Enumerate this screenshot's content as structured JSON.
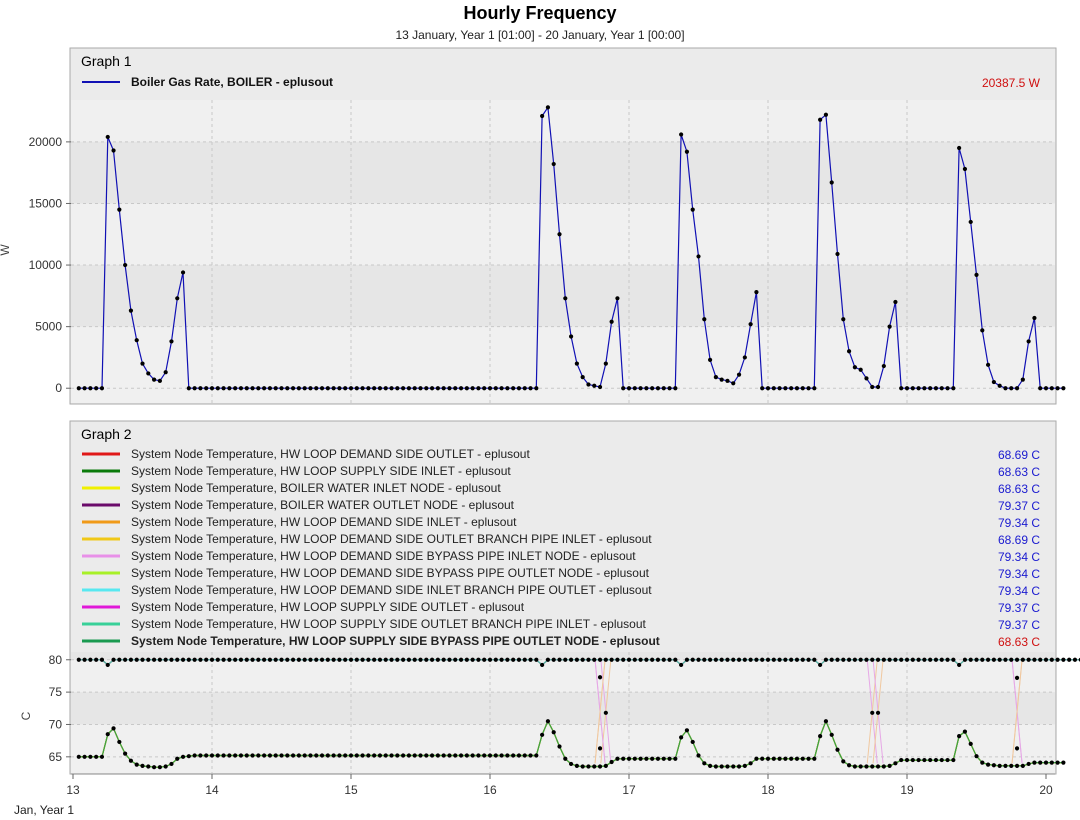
{
  "header": {
    "title": "Hourly Frequency",
    "subtitle": "13 January, Year 1 [01:00] - 20 January, Year 1 [00:00]"
  },
  "x_axis": {
    "tick_labels": [
      "13",
      "14",
      "15",
      "16",
      "17",
      "18",
      "19",
      "20"
    ],
    "sub_label": "Jan, Year 1"
  },
  "colors": {
    "grid_bg": "#f0f0f0",
    "alt_band": "#e6e6e6",
    "legend_bg": "#ebebeb",
    "series1": "#1010b4",
    "marker": "#000000",
    "value_blue": "#1a1ad0",
    "value_red": "#d01010"
  },
  "chart_data": [
    {
      "type": "line",
      "panel_title": "Graph 1",
      "ylabel": "W",
      "ylim": [
        -1200,
        23400
      ],
      "yticks": [
        0,
        5000,
        10000,
        15000,
        20000
      ],
      "ytick_labels": [
        "0",
        "5000",
        "10000",
        "15000",
        "20000"
      ],
      "x_start_day": 13.0417,
      "x_step_hours": 1,
      "series": [
        {
          "name": "Boiler Gas Rate, BOILER - eplusout",
          "color": "#1010b4",
          "readout": "20387.5 W",
          "readout_color": "#d01010",
          "bold": true,
          "segments": [
            {
              "start_hour": 0,
              "values": [
                0,
                0,
                0,
                0,
                0,
                20400,
                19300,
                14500,
                10000,
                6300,
                3900,
                2000,
                1200,
                700,
                600,
                1300,
                3800,
                7300,
                9400
              ]
            },
            {
              "start_hour": 19,
              "values": [
                0,
                0,
                0,
                0,
                0,
                0,
                0,
                0,
                0,
                0,
                0,
                0,
                0,
                0,
                0,
                0,
                0,
                0,
                0,
                0,
                0,
                0,
                0,
                0,
                0,
                0,
                0,
                0,
                0,
                0,
                0,
                0,
                0,
                0,
                0,
                0,
                0,
                0,
                0,
                0,
                0,
                0,
                0,
                0,
                0,
                0,
                0,
                0,
                0,
                0,
                0,
                0,
                0,
                0,
                0,
                0,
                0,
                0,
                0,
                0,
                0
              ]
            },
            {
              "start_hour": 80,
              "values": [
                22100,
                22800,
                18200,
                12500,
                7300,
                4200,
                2000,
                900,
                300,
                200,
                100,
                2000,
                5400,
                7300
              ]
            },
            {
              "start_hour": 94,
              "values": [
                0,
                0,
                0,
                0,
                0,
                0,
                0,
                0,
                0,
                0
              ]
            },
            {
              "start_hour": 104,
              "values": [
                20600,
                19200,
                14500,
                10700,
                5600,
                2300,
                900,
                700,
                600,
                400,
                1100,
                2500,
                5200,
                7800
              ]
            },
            {
              "start_hour": 118,
              "values": [
                0,
                0,
                0,
                0,
                0,
                0,
                0,
                0,
                0,
                0
              ]
            },
            {
              "start_hour": 128,
              "values": [
                21800,
                22200,
                16700,
                10900,
                5600,
                3000,
                1700,
                1500,
                800,
                100,
                100,
                1800,
                5000,
                7000
              ]
            },
            {
              "start_hour": 142,
              "values": [
                0,
                0,
                0,
                0,
                0,
                0,
                0,
                0,
                0,
                0
              ]
            },
            {
              "start_hour": 152,
              "values": [
                19500,
                17800,
                13500,
                9200,
                4700,
                1900,
                500,
                200,
                0,
                0,
                0,
                700,
                3800,
                5700
              ]
            },
            {
              "start_hour": 166,
              "values": [
                0,
                0,
                0,
                0,
                0
              ]
            }
          ]
        }
      ]
    },
    {
      "type": "line",
      "panel_title": "Graph 2",
      "ylabel": "C",
      "ylim": [
        62.5,
        81.2
      ],
      "yticks": [
        65,
        70,
        75,
        80
      ],
      "ytick_labels": [
        "65",
        "70",
        "75",
        "80"
      ],
      "x_start_day": 13.0417,
      "x_step_hours": 1,
      "hot_profile": [
        80.0,
        80.0,
        80.0,
        80.0,
        80.0,
        79.2,
        80.0,
        80.0,
        80.0,
        80.0,
        80.0,
        80.0,
        80.0,
        80.0,
        80.0,
        80.0,
        80.0,
        80.0,
        80.0,
        80.0,
        80.0,
        80.0,
        80.0,
        80.0,
        80.0,
        80.0,
        80.0,
        80.0,
        80.0,
        80.0,
        80.0,
        80.0,
        80.0,
        80.0,
        80.0,
        80.0,
        80.0,
        80.0,
        80.0,
        80.0,
        80.0,
        80.0,
        80.0,
        80.0,
        80.0,
        80.0,
        80.0,
        80.0,
        80.0,
        80.0,
        80.0,
        80.0,
        80.0,
        80.0,
        80.0,
        80.0,
        80.0,
        80.0,
        80.0,
        80.0,
        80.0,
        80.0,
        80.0,
        80.0,
        80.0,
        80.0,
        80.0,
        80.0,
        80.0,
        80.0,
        80.0,
        80.0,
        80.0,
        80.0,
        80.0,
        80.0,
        80.0,
        80.0,
        80.0,
        80.0,
        79.2,
        80.0,
        80.0,
        80.0,
        80.0,
        80.0,
        80.0,
        80.0,
        80.0,
        80.0,
        80.0,
        80.0,
        80.0,
        80.0,
        80.0,
        80.0,
        80.0,
        80.0,
        80.0,
        80.0,
        80.0,
        80.0,
        80.0,
        80.0,
        79.2,
        80.0,
        80.0,
        80.0,
        80.0,
        80.0,
        80.0,
        80.0,
        80.0,
        80.0,
        80.0,
        80.0,
        80.0,
        80.0,
        80.0,
        80.0,
        80.0,
        80.0,
        80.0,
        80.0,
        80.0,
        80.0,
        80.0,
        80.0,
        79.2,
        80.0,
        80.0,
        80.0,
        80.0,
        80.0,
        80.0,
        80.0,
        80.0,
        80.0,
        80.0,
        80.0,
        80.0,
        80.0,
        80.0,
        80.0,
        80.0,
        80.0,
        80.0,
        80.0,
        80.0,
        80.0,
        80.0,
        80.0,
        79.2,
        80.0,
        80.0,
        80.0,
        80.0,
        80.0,
        80.0,
        80.0,
        80.0,
        80.0,
        80.0,
        80.0,
        80.0,
        80.0,
        80.0,
        80.0,
        80.0,
        80.0,
        80.0,
        80.0,
        80.0,
        80.0
      ],
      "cold_profile": [
        65.0,
        65.0,
        65.0,
        65.0,
        65.0,
        68.5,
        69.4,
        67.3,
        65.5,
        64.4,
        63.8,
        63.6,
        63.5,
        63.4,
        63.4,
        63.5,
        63.9,
        64.7,
        65.0,
        65.1,
        65.2,
        65.2,
        65.2,
        65.2,
        65.2,
        65.2,
        65.2,
        65.2,
        65.2,
        65.2,
        65.2,
        65.2,
        65.2,
        65.2,
        65.2,
        65.2,
        65.2,
        65.2,
        65.2,
        65.2,
        65.2,
        65.2,
        65.2,
        65.2,
        65.2,
        65.2,
        65.2,
        65.2,
        65.2,
        65.2,
        65.2,
        65.2,
        65.2,
        65.2,
        65.2,
        65.2,
        65.2,
        65.2,
        65.2,
        65.2,
        65.2,
        65.2,
        65.2,
        65.2,
        65.2,
        65.2,
        65.2,
        65.2,
        65.2,
        65.2,
        65.2,
        65.2,
        65.2,
        65.2,
        65.2,
        65.2,
        65.2,
        65.2,
        65.2,
        65.2,
        68.4,
        70.5,
        68.8,
        66.6,
        64.7,
        63.9,
        63.6,
        63.5,
        63.5,
        63.5,
        63.5,
        63.6,
        64.2,
        64.7,
        64.7,
        64.7,
        64.7,
        64.7,
        64.7,
        64.7,
        64.7,
        64.7,
        64.7,
        64.7,
        68.0,
        69.1,
        67.3,
        65.2,
        64.0,
        63.6,
        63.5,
        63.5,
        63.5,
        63.5,
        63.5,
        63.6,
        64.0,
        64.7,
        64.7,
        64.7,
        64.7,
        64.7,
        64.7,
        64.7,
        64.7,
        64.7,
        64.7,
        64.7,
        68.2,
        70.5,
        68.4,
        66.1,
        64.3,
        63.7,
        63.5,
        63.5,
        63.5,
        63.5,
        63.5,
        63.5,
        63.6,
        64.0,
        64.5,
        64.5,
        64.5,
        64.5,
        64.5,
        64.5,
        64.5,
        64.5,
        64.5,
        64.5,
        68.2,
        68.9,
        67.0,
        65.1,
        64.1,
        63.8,
        63.7,
        63.6,
        63.6,
        63.6,
        63.6,
        63.6,
        63.9,
        64.1,
        64.1,
        64.1,
        64.1,
        64.1,
        64.1
      ],
      "mid_markers": [
        {
          "hour": 90,
          "value": 77.3
        },
        {
          "hour": 91,
          "value": 71.8
        },
        {
          "hour": 90,
          "value": 66.3
        },
        {
          "hour": 137,
          "value": 71.8
        },
        {
          "hour": 138,
          "value": 71.8
        },
        {
          "hour": 162,
          "value": 77.2
        },
        {
          "hour": 162,
          "value": 66.3
        }
      ],
      "series": [
        {
          "name": "System Node Temperature, HW LOOP DEMAND SIDE OUTLET - eplusout",
          "color": "#e01818",
          "readout": "68.69 C",
          "readout_color": "#1a1ad0",
          "bold": false,
          "profile": "cold"
        },
        {
          "name": "System Node Temperature, HW LOOP SUPPLY SIDE INLET - eplusout",
          "color": "#0a7a0a",
          "readout": "68.63 C",
          "readout_color": "#1a1ad0",
          "bold": false,
          "profile": "cold"
        },
        {
          "name": "System Node Temperature, BOILER WATER INLET NODE - eplusout",
          "color": "#f0f000",
          "readout": "68.63 C",
          "readout_color": "#1a1ad0",
          "bold": false,
          "profile": "cold"
        },
        {
          "name": "System Node Temperature, BOILER WATER OUTLET NODE - eplusout",
          "color": "#6a0a6a",
          "readout": "79.37 C",
          "readout_color": "#1a1ad0",
          "bold": false,
          "profile": "hot"
        },
        {
          "name": "System Node Temperature, HW LOOP DEMAND SIDE INLET - eplusout",
          "color": "#f09a18",
          "readout": "79.34 C",
          "readout_color": "#1a1ad0",
          "bold": false,
          "profile": "hot"
        },
        {
          "name": "System Node Temperature, HW LOOP DEMAND SIDE OUTLET BRANCH PIPE INLET - eplusout",
          "color": "#f0c818",
          "readout": "68.69 C",
          "readout_color": "#1a1ad0",
          "bold": false,
          "profile": "cold"
        },
        {
          "name": "System Node Temperature, HW LOOP DEMAND SIDE BYPASS PIPE INLET NODE - eplusout",
          "color": "#e890e8",
          "readout": "79.34 C",
          "readout_color": "#1a1ad0",
          "bold": false,
          "profile": "hot"
        },
        {
          "name": "System Node Temperature, HW LOOP DEMAND SIDE BYPASS PIPE OUTLET NODE - eplusout",
          "color": "#a8f028",
          "readout": "79.34 C",
          "readout_color": "#1a1ad0",
          "bold": false,
          "profile": "hot"
        },
        {
          "name": "System Node Temperature, HW LOOP DEMAND SIDE INLET BRANCH PIPE OUTLET - eplusout",
          "color": "#58e8f0",
          "readout": "79.34 C",
          "readout_color": "#1a1ad0",
          "bold": false,
          "profile": "hot"
        },
        {
          "name": "System Node Temperature, HW LOOP SUPPLY SIDE OUTLET - eplusout",
          "color": "#e018d8",
          "readout": "79.37 C",
          "readout_color": "#1a1ad0",
          "bold": false,
          "profile": "hot"
        },
        {
          "name": "System Node Temperature, HW LOOP SUPPLY SIDE OUTLET BRANCH PIPE INLET - eplusout",
          "color": "#38d098",
          "readout": "79.37 C",
          "readout_color": "#1a1ad0",
          "bold": false,
          "profile": "hot"
        },
        {
          "name": "System Node Temperature, HW LOOP SUPPLY SIDE BYPASS PIPE OUTLET NODE - eplusout",
          "color": "#1a9a50",
          "readout": "68.63 C",
          "readout_color": "#d01010",
          "bold": true,
          "profile": "cold"
        }
      ]
    }
  ]
}
